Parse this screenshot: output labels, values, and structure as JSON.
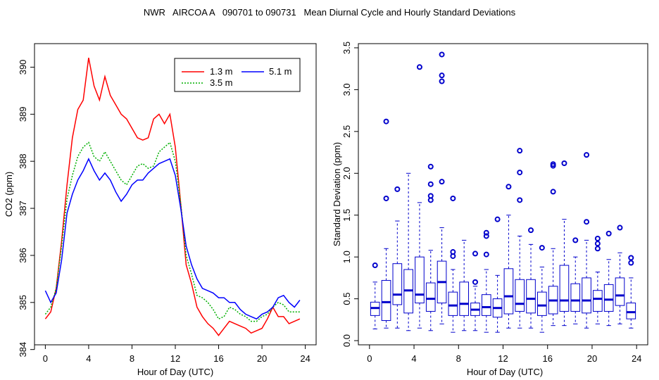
{
  "figure_title": "NWR   AIRCOA A   090701 to 090731   Mean Diurnal Cycle and Hourly Standard Deviations",
  "chart_data": [
    {
      "type": "line",
      "title": "",
      "xlabel": "Hour of Day (UTC)",
      "ylabel": "CO2 (ppm)",
      "xlim": [
        -1,
        25
      ],
      "ylim": [
        384.1,
        390.5
      ],
      "xticks": [
        0,
        4,
        8,
        12,
        16,
        20,
        24
      ],
      "yticks": [
        384,
        385,
        386,
        387,
        388,
        389,
        390
      ],
      "legend": {
        "placement": "top-right",
        "entries": [
          "1.3 m",
          "3.5 m",
          "5.1 m"
        ]
      },
      "x": [
        0,
        0.5,
        1,
        1.5,
        2,
        2.5,
        3,
        3.5,
        4,
        4.5,
        5,
        5.5,
        6,
        6.5,
        7,
        7.5,
        8,
        8.5,
        9,
        9.5,
        10,
        10.5,
        11,
        11.5,
        12,
        12.5,
        13,
        13.5,
        14,
        14.5,
        15,
        15.5,
        16,
        16.5,
        17,
        17.5,
        18,
        18.5,
        19,
        19.5,
        20,
        20.5,
        21,
        21.5,
        22,
        22.5,
        23,
        23.5
      ],
      "series": [
        {
          "name": "1.3 m",
          "color": "#ff0000",
          "dash": "solid",
          "values": [
            384.65,
            384.8,
            385.3,
            386.3,
            387.5,
            388.5,
            389.1,
            389.3,
            390.2,
            389.6,
            389.3,
            389.8,
            389.4,
            389.2,
            389.0,
            388.9,
            388.7,
            388.5,
            388.45,
            388.5,
            388.9,
            389.0,
            388.8,
            389.0,
            388.3,
            387.1,
            385.8,
            385.4,
            384.9,
            384.7,
            384.55,
            384.45,
            384.3,
            384.45,
            384.6,
            384.55,
            384.5,
            384.45,
            384.35,
            384.4,
            384.45,
            384.65,
            384.9,
            384.7,
            384.7,
            384.55,
            384.6,
            384.65
          ]
        },
        {
          "name": "3.5 m",
          "color": "#00b000",
          "dash": "dotted",
          "values": [
            384.75,
            384.9,
            385.3,
            386.2,
            387.2,
            387.7,
            388.1,
            388.3,
            388.4,
            388.1,
            388.0,
            388.2,
            388.0,
            387.8,
            387.6,
            387.5,
            387.7,
            387.9,
            387.95,
            387.85,
            387.9,
            388.2,
            388.3,
            388.4,
            388.0,
            387.1,
            386.0,
            385.6,
            385.15,
            385.1,
            385.0,
            384.85,
            384.65,
            384.7,
            384.9,
            384.85,
            384.75,
            384.7,
            384.6,
            384.6,
            384.7,
            384.75,
            384.9,
            385.0,
            384.95,
            384.8,
            384.8,
            384.8
          ]
        },
        {
          "name": "5.1 m",
          "color": "#0000ff",
          "dash": "solid",
          "values": [
            385.25,
            385.0,
            385.2,
            385.9,
            386.9,
            387.3,
            387.6,
            387.8,
            388.05,
            387.8,
            387.6,
            387.75,
            387.6,
            387.35,
            387.15,
            387.3,
            387.5,
            387.6,
            387.6,
            387.75,
            387.85,
            387.95,
            388.0,
            388.05,
            387.7,
            387.0,
            386.2,
            385.8,
            385.5,
            385.3,
            385.25,
            385.2,
            385.1,
            385.1,
            385.0,
            385.0,
            384.85,
            384.75,
            384.7,
            384.65,
            384.75,
            384.8,
            384.9,
            385.1,
            385.15,
            385.0,
            384.9,
            385.05
          ]
        }
      ]
    },
    {
      "type": "box",
      "title": "",
      "xlabel": "Hour of Day (UTC)",
      "ylabel": "Standard Deviation (ppm)",
      "xlim": [
        -1,
        25
      ],
      "ylim": [
        -0.05,
        3.55
      ],
      "xticks": [
        0,
        4,
        8,
        12,
        16,
        20,
        24
      ],
      "yticks": [
        0.0,
        0.5,
        1.0,
        1.5,
        2.0,
        2.5,
        3.0,
        3.5
      ],
      "ytick_labels": [
        "0.0",
        "0.5",
        "1.0",
        "1.5",
        "2.0",
        "2.5",
        "3.0",
        "3.5"
      ],
      "color": "#0000cc",
      "boxes": [
        {
          "hour": 0.5,
          "min": 0.14,
          "q1": 0.3,
          "median": 0.39,
          "q3": 0.46,
          "max": 0.7,
          "outliers": [
            0.9
          ]
        },
        {
          "hour": 1.5,
          "min": 0.15,
          "q1": 0.24,
          "median": 0.46,
          "q3": 0.72,
          "max": 1.1,
          "outliers": [
            1.7,
            2.62
          ]
        },
        {
          "hour": 2.5,
          "min": 0.15,
          "q1": 0.43,
          "median": 0.55,
          "q3": 0.92,
          "max": 1.43,
          "outliers": [
            1.81
          ]
        },
        {
          "hour": 3.5,
          "min": 0.12,
          "q1": 0.33,
          "median": 0.6,
          "q3": 0.85,
          "max": 2.0,
          "outliers": []
        },
        {
          "hour": 4.5,
          "min": 0.15,
          "q1": 0.45,
          "median": 0.55,
          "q3": 1.0,
          "max": 1.65,
          "outliers": [
            3.27
          ]
        },
        {
          "hour": 5.5,
          "min": 0.12,
          "q1": 0.35,
          "median": 0.5,
          "q3": 0.69,
          "max": 1.08,
          "outliers": [
            1.68,
            1.73,
            1.87,
            2.08
          ]
        },
        {
          "hour": 6.5,
          "min": 0.2,
          "q1": 0.45,
          "median": 0.7,
          "q3": 0.95,
          "max": 1.35,
          "outliers": [
            1.9,
            3.1,
            3.17,
            3.42
          ]
        },
        {
          "hour": 7.5,
          "min": 0.1,
          "q1": 0.3,
          "median": 0.42,
          "q3": 0.58,
          "max": 0.85,
          "outliers": [
            1.01,
            1.06,
            1.7
          ]
        },
        {
          "hour": 8.5,
          "min": 0.12,
          "q1": 0.3,
          "median": 0.44,
          "q3": 0.7,
          "max": 1.2,
          "outliers": []
        },
        {
          "hour": 9.5,
          "min": 0.12,
          "q1": 0.3,
          "median": 0.37,
          "q3": 0.45,
          "max": 0.65,
          "outliers": [
            0.7,
            1.04
          ]
        },
        {
          "hour": 10.5,
          "min": 0.1,
          "q1": 0.3,
          "median": 0.4,
          "q3": 0.55,
          "max": 0.85,
          "outliers": [
            1.03,
            1.25,
            1.29
          ]
        },
        {
          "hour": 11.5,
          "min": 0.1,
          "q1": 0.28,
          "median": 0.39,
          "q3": 0.5,
          "max": 0.78,
          "outliers": [
            1.45
          ]
        },
        {
          "hour": 12.5,
          "min": 0.15,
          "q1": 0.32,
          "median": 0.53,
          "q3": 0.86,
          "max": 1.5,
          "outliers": [
            1.84
          ]
        },
        {
          "hour": 13.5,
          "min": 0.15,
          "q1": 0.35,
          "median": 0.44,
          "q3": 0.73,
          "max": 1.25,
          "outliers": [
            1.68,
            2.01,
            2.27
          ]
        },
        {
          "hour": 14.5,
          "min": 0.15,
          "q1": 0.33,
          "median": 0.5,
          "q3": 0.73,
          "max": 1.15,
          "outliers": [
            1.32
          ]
        },
        {
          "hour": 15.5,
          "min": 0.1,
          "q1": 0.3,
          "median": 0.42,
          "q3": 0.58,
          "max": 0.88,
          "outliers": [
            1.11
          ]
        },
        {
          "hour": 16.5,
          "min": 0.18,
          "q1": 0.32,
          "median": 0.48,
          "q3": 0.65,
          "max": 1.1,
          "outliers": [
            1.78,
            2.09,
            2.11
          ]
        },
        {
          "hour": 17.5,
          "min": 0.18,
          "q1": 0.35,
          "median": 0.48,
          "q3": 0.9,
          "max": 1.45,
          "outliers": [
            2.12
          ]
        },
        {
          "hour": 18.5,
          "min": 0.2,
          "q1": 0.35,
          "median": 0.48,
          "q3": 0.68,
          "max": 1.0,
          "outliers": [
            1.2
          ]
        },
        {
          "hour": 19.5,
          "min": 0.15,
          "q1": 0.33,
          "median": 0.48,
          "q3": 0.75,
          "max": 1.2,
          "outliers": [
            1.42,
            2.22
          ]
        },
        {
          "hour": 20.5,
          "min": 0.2,
          "q1": 0.35,
          "median": 0.5,
          "q3": 0.6,
          "max": 0.82,
          "outliers": [
            1.1,
            1.16,
            1.22
          ]
        },
        {
          "hour": 21.5,
          "min": 0.18,
          "q1": 0.35,
          "median": 0.49,
          "q3": 0.67,
          "max": 0.97,
          "outliers": [
            1.28
          ]
        },
        {
          "hour": 22.5,
          "min": 0.2,
          "q1": 0.42,
          "median": 0.54,
          "q3": 0.75,
          "max": 1.05,
          "outliers": [
            1.35
          ]
        },
        {
          "hour": 23.5,
          "min": 0.15,
          "q1": 0.26,
          "median": 0.34,
          "q3": 0.45,
          "max": 0.75,
          "outliers": [
            0.93,
            0.99
          ]
        }
      ]
    }
  ]
}
